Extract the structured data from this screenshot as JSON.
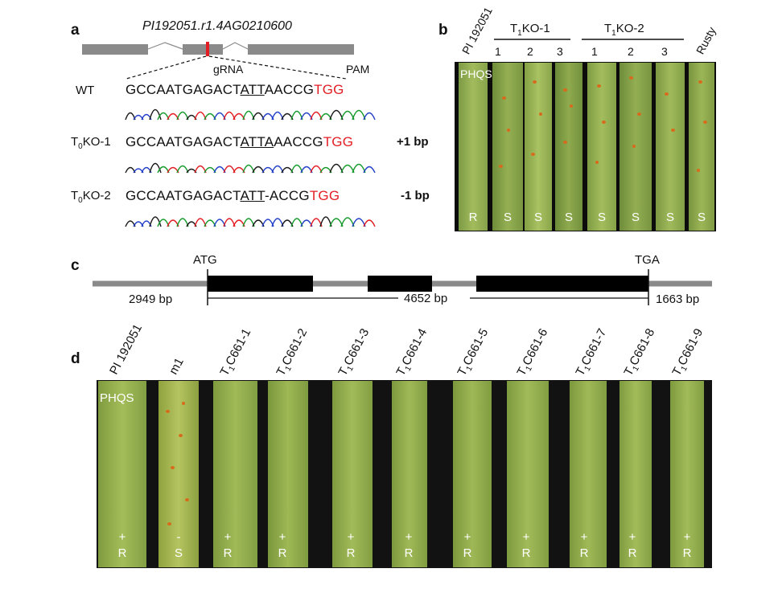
{
  "panel_a": {
    "letter": "a",
    "gene_id": "PI192051.r1.4AG0210600",
    "grna_label": "gRNA",
    "pam_label": "PAM",
    "rows": [
      {
        "label_main": "WT",
        "label_sub": "",
        "label_rest": "",
        "seq_pre": "GCCAATGAGACT",
        "seq_ul": "ATT",
        "seq_post": "AACCG",
        "seq_pam": "TGG",
        "change": ""
      },
      {
        "label_main": "T",
        "label_sub": "0",
        "label_rest": "KO-1",
        "seq_pre": "GCCAATGAGACT",
        "seq_ul": "ATTA",
        "seq_post": "AACCG",
        "seq_pam": "TGG",
        "change": "+1 bp"
      },
      {
        "label_main": "T",
        "label_sub": "0",
        "label_rest": "KO-2",
        "seq_pre": "GCCAATGAGACT",
        "seq_ul": "ATT",
        "seq_post": "-ACCG",
        "seq_pam": "TGG",
        "change": "-1 bp"
      }
    ]
  },
  "panel_b": {
    "letter": "b",
    "group1": {
      "main": "T",
      "sub": "1",
      "rest": "KO-1"
    },
    "group2": {
      "main": "T",
      "sub": "1",
      "rest": "KO-2"
    },
    "col_first": "PI 192051",
    "col_last": "Rusty",
    "numbers": [
      "1",
      "2",
      "3",
      "1",
      "2",
      "3"
    ],
    "race": "PHQS",
    "reactions": [
      "R",
      "S",
      "S",
      "S",
      "S",
      "S",
      "S",
      "S"
    ]
  },
  "panel_c": {
    "letter": "c",
    "start": "ATG",
    "stop": "TGA",
    "upstream": "2949 bp",
    "gene_len": "4652 bp",
    "downstream": "1663 bp"
  },
  "panel_d": {
    "letter": "d",
    "race": "PHQS",
    "columns": [
      {
        "label": "PI 192051",
        "sub": "",
        "rest": "",
        "sign": "+",
        "reaction": "R"
      },
      {
        "label": "m1",
        "sub": "",
        "rest": "",
        "sign": "-",
        "reaction": "S"
      },
      {
        "label": "T",
        "sub": "1",
        "rest": "C661-1",
        "sign": "+",
        "reaction": "R"
      },
      {
        "label": "T",
        "sub": "1",
        "rest": "C661-2",
        "sign": "+",
        "reaction": "R"
      },
      {
        "label": "T",
        "sub": "1",
        "rest": "C661-3",
        "sign": "+",
        "reaction": "R"
      },
      {
        "label": "T",
        "sub": "1",
        "rest": "C661-4",
        "sign": "+",
        "reaction": "R"
      },
      {
        "label": "T",
        "sub": "1",
        "rest": "C661-5",
        "sign": "+",
        "reaction": "R"
      },
      {
        "label": "T",
        "sub": "1",
        "rest": "C661-6",
        "sign": "+",
        "reaction": "R"
      },
      {
        "label": "T",
        "sub": "1",
        "rest": "C661-7",
        "sign": "+",
        "reaction": "R"
      },
      {
        "label": "T",
        "sub": "1",
        "rest": "C661-8",
        "sign": "+",
        "reaction": "R"
      },
      {
        "label": "T",
        "sub": "1",
        "rest": "C661-9",
        "sign": "+",
        "reaction": "R"
      }
    ]
  },
  "colors": {
    "red": "#e21d24",
    "gene_gray": "#8a8a8a",
    "leaf_green": "#6f8f3a",
    "rust": "#d86a1c"
  }
}
